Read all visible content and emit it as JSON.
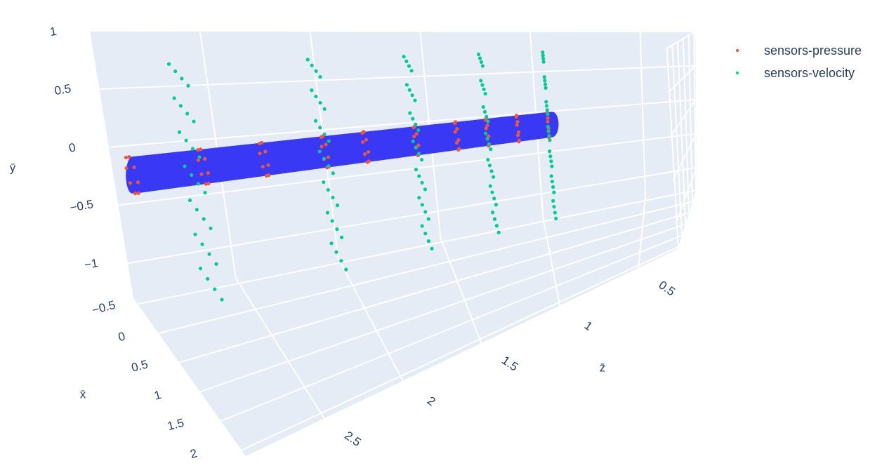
{
  "chart_data": {
    "type": "scatter3d",
    "xaxis_title": "x̄",
    "yaxis_title": "ȳ",
    "zaxis_title": "z̄",
    "xlim": [
      -0.6,
      2.1
    ],
    "ylim": [
      -1.3,
      1
    ],
    "zlim": [
      0.25,
      3
    ],
    "xticks": [
      {
        "value": -0.5,
        "label": "−0.5"
      },
      0,
      0.5,
      1,
      1.5,
      2
    ],
    "yticks": [
      {
        "value": -1,
        "label": "−1"
      },
      {
        "value": -0.5,
        "label": "−0.5"
      },
      0,
      0.5,
      1
    ],
    "zticks": [
      0.5,
      1,
      1.5,
      2,
      2.5
    ],
    "grid": true,
    "legend_position": "top-right",
    "pipe": {
      "color": "#3838f5",
      "x": 0,
      "y": 0,
      "radius": 0.15,
      "z": [
        0.93,
        3.0
      ]
    },
    "series": [
      {
        "name": "sensors-pressure",
        "color": "#EF553B",
        "x": [
          0.15,
          0.106,
          0,
          -0.106,
          -0.15,
          -0.106,
          0,
          0.106,
          0.15,
          0.106,
          0,
          -0.106,
          -0.15,
          -0.106,
          0,
          0.106,
          0.15,
          0.106,
          0,
          -0.106,
          -0.15,
          -0.106,
          0,
          0.106,
          0.15,
          0.106,
          0,
          -0.106,
          -0.15,
          -0.106,
          0,
          0.106,
          0.15,
          0.106,
          0,
          -0.106,
          -0.15,
          -0.106,
          0,
          0.106,
          0.15,
          0.106,
          0,
          -0.106,
          -0.15,
          -0.106,
          0,
          0.106,
          0.15,
          0.106,
          0,
          -0.106,
          -0.15,
          -0.106,
          0,
          0.106,
          0.15,
          0.106,
          0,
          -0.106,
          -0.15,
          -0.106,
          0,
          0.106,
          0.15,
          0.106,
          0,
          -0.106,
          -0.15,
          -0.106,
          0,
          0.106,
          0.15,
          0.106,
          0,
          -0.106,
          -0.15,
          -0.106,
          0,
          0.106
        ],
        "y": [
          0,
          0.106,
          0.15,
          0.106,
          0,
          -0.106,
          -0.15,
          -0.106,
          0,
          0.106,
          0.15,
          0.106,
          0,
          -0.106,
          -0.15,
          -0.106,
          0,
          0.106,
          0.15,
          0.106,
          0,
          -0.106,
          -0.15,
          -0.106,
          0,
          0.106,
          0.15,
          0.106,
          0,
          -0.106,
          -0.15,
          -0.106,
          0,
          0.106,
          0.15,
          0.106,
          0,
          -0.106,
          -0.15,
          -0.106,
          0,
          0.106,
          0.15,
          0.106,
          0,
          -0.106,
          -0.15,
          -0.106,
          0,
          0.106,
          0.15,
          0.106,
          0,
          -0.106,
          -0.15,
          -0.106,
          0,
          0.106,
          0.15,
          0.106,
          0,
          -0.106,
          -0.15,
          -0.106,
          0,
          0.106,
          0.15,
          0.106,
          0,
          -0.106,
          -0.15,
          -0.106,
          0,
          0.106,
          0.15,
          0.106,
          0,
          -0.106,
          -0.15,
          -0.106
        ],
        "z": [
          3,
          3,
          3,
          3,
          3,
          3,
          3,
          3,
          2.65,
          2.65,
          2.65,
          2.65,
          2.65,
          2.65,
          2.65,
          2.65,
          2.35,
          2.35,
          2.35,
          2.35,
          2.35,
          2.35,
          2.35,
          2.35,
          2.05,
          2.05,
          2.05,
          2.05,
          2.05,
          2.05,
          2.05,
          2.05,
          1.85,
          1.85,
          1.85,
          1.85,
          1.85,
          1.85,
          1.85,
          1.85,
          1.6,
          1.6,
          1.6,
          1.6,
          1.6,
          1.6,
          1.6,
          1.6,
          1.4,
          1.4,
          1.4,
          1.4,
          1.4,
          1.4,
          1.4,
          1.4,
          1.25,
          1.25,
          1.25,
          1.25,
          1.25,
          1.25,
          1.25,
          1.25,
          1.1,
          1.1,
          1.1,
          1.1,
          1.1,
          1.1,
          1.1,
          1.1,
          0.95,
          0.95,
          0.95,
          0.95,
          0.95,
          0.95,
          0.95,
          0.95
        ]
      },
      {
        "name": "sensors-velocity",
        "color": "#00CC96",
        "x": [
          -0.3,
          -0.1,
          0.1,
          0.3,
          -0.3,
          -0.1,
          0.1,
          0.3,
          -0.3,
          -0.1,
          0.1,
          0.3,
          -0.3,
          -0.1,
          0.1,
          0.3,
          -0.3,
          -0.1,
          0.1,
          0.3,
          -0.3,
          -0.1,
          0.1,
          0.3,
          -0.3,
          -0.1,
          0.1,
          0.3,
          -0.3,
          -0.1,
          0.1,
          0.3,
          -0.3,
          -0.1,
          0.1,
          0.3,
          -0.3,
          -0.1,
          0.1,
          0.3,
          -0.3,
          -0.1,
          0.1,
          0.3,
          -0.3,
          -0.1,
          0.1,
          0.3,
          -0.3,
          -0.1,
          0.1,
          0.3,
          -0.3,
          -0.1,
          0.1,
          0.3,
          -0.3,
          -0.1,
          0.1,
          0.3,
          -0.3,
          -0.1,
          0.1,
          0.3,
          -0.3,
          -0.1,
          0.1,
          0.3,
          -0.3,
          -0.1,
          0.1,
          0.3,
          -0.3,
          -0.1,
          0.1,
          0.3,
          -0.3,
          -0.1,
          0.1,
          0.3,
          -0.3,
          -0.1,
          0.1,
          0.3,
          -0.3,
          -0.1,
          0.1,
          0.3,
          -0.3,
          -0.1,
          0.1,
          0.3,
          -0.3,
          -0.1,
          0.1,
          0.3,
          -0.3,
          -0.1,
          0.1,
          0.3,
          -0.3,
          -0.1,
          0.1,
          0.3,
          -0.3,
          -0.1,
          0.1,
          0.3,
          -0.3,
          -0.1,
          0.1,
          0.3,
          -0.3,
          -0.1,
          0.1,
          0.3,
          -0.3,
          -0.1,
          0.1,
          0.3,
          -0.3,
          -0.1,
          0.1,
          0.3,
          -0.3,
          -0.1,
          0.1,
          0.3,
          -0.3,
          -0.1,
          0.1,
          0.3,
          -0.3,
          -0.1,
          0.1,
          0.3,
          -0.3,
          -0.1,
          0.1,
          0.3
        ],
        "y": [
          0.8,
          0.8,
          0.8,
          0.8,
          0.5,
          0.5,
          0.5,
          0.5,
          0.2,
          0.2,
          0.2,
          0.2,
          -0.1,
          -0.1,
          -0.1,
          -0.1,
          -0.4,
          -0.4,
          -0.4,
          -0.4,
          -0.7,
          -0.7,
          -0.7,
          -0.7,
          -1,
          -1,
          -1,
          -1,
          0.8,
          0.8,
          0.8,
          0.8,
          0.5,
          0.5,
          0.5,
          0.5,
          0.2,
          0.2,
          0.2,
          0.2,
          -0.1,
          -0.1,
          -0.1,
          -0.1,
          -0.4,
          -0.4,
          -0.4,
          -0.4,
          -0.7,
          -0.7,
          -0.7,
          -0.7,
          -1,
          -1,
          -1,
          -1,
          0.8,
          0.8,
          0.8,
          0.8,
          0.5,
          0.5,
          0.5,
          0.5,
          0.2,
          0.2,
          0.2,
          0.2,
          -0.1,
          -0.1,
          -0.1,
          -0.1,
          -0.4,
          -0.4,
          -0.4,
          -0.4,
          -0.7,
          -0.7,
          -0.7,
          -0.7,
          -1,
          -1,
          -1,
          -1,
          0.8,
          0.8,
          0.8,
          0.8,
          0.5,
          0.5,
          0.5,
          0.5,
          0.2,
          0.2,
          0.2,
          0.2,
          -0.1,
          -0.1,
          -0.1,
          -0.1,
          -0.4,
          -0.4,
          -0.4,
          -0.4,
          -0.7,
          -0.7,
          -0.7,
          -0.7,
          -1,
          -1,
          -1,
          -1,
          0.8,
          0.8,
          0.8,
          0.8,
          0.5,
          0.5,
          0.5,
          0.5,
          0.2,
          0.2,
          0.2,
          0.2,
          -0.1,
          -0.1,
          -0.1,
          -0.1,
          -0.4,
          -0.4,
          -0.4,
          -0.4,
          -0.7,
          -0.7,
          -0.7,
          -0.7,
          -1,
          -1,
          -1,
          -1
        ],
        "z": [
          2.7,
          2.7,
          2.7,
          2.7,
          2.7,
          2.7,
          2.7,
          2.7,
          2.7,
          2.7,
          2.7,
          2.7,
          2.7,
          2.7,
          2.7,
          2.7,
          2.7,
          2.7,
          2.7,
          2.7,
          2.7,
          2.7,
          2.7,
          2.7,
          2.7,
          2.7,
          2.7,
          2.7,
          2.05,
          2.05,
          2.05,
          2.05,
          2.05,
          2.05,
          2.05,
          2.05,
          2.05,
          2.05,
          2.05,
          2.05,
          2.05,
          2.05,
          2.05,
          2.05,
          2.05,
          2.05,
          2.05,
          2.05,
          2.05,
          2.05,
          2.05,
          2.05,
          2.05,
          2.05,
          2.05,
          2.05,
          1.6,
          1.6,
          1.6,
          1.6,
          1.6,
          1.6,
          1.6,
          1.6,
          1.6,
          1.6,
          1.6,
          1.6,
          1.6,
          1.6,
          1.6,
          1.6,
          1.6,
          1.6,
          1.6,
          1.6,
          1.6,
          1.6,
          1.6,
          1.6,
          1.6,
          1.6,
          1.6,
          1.6,
          1.25,
          1.25,
          1.25,
          1.25,
          1.25,
          1.25,
          1.25,
          1.25,
          1.25,
          1.25,
          1.25,
          1.25,
          1.25,
          1.25,
          1.25,
          1.25,
          1.25,
          1.25,
          1.25,
          1.25,
          1.25,
          1.25,
          1.25,
          1.25,
          1.25,
          1.25,
          1.25,
          1.25,
          0.95,
          0.95,
          0.95,
          0.95,
          0.95,
          0.95,
          0.95,
          0.95,
          0.95,
          0.95,
          0.95,
          0.95,
          0.95,
          0.95,
          0.95,
          0.95,
          0.95,
          0.95,
          0.95,
          0.95,
          0.95,
          0.95,
          0.95,
          0.95,
          0.95,
          0.95,
          0.95,
          0.95
        ]
      }
    ]
  }
}
